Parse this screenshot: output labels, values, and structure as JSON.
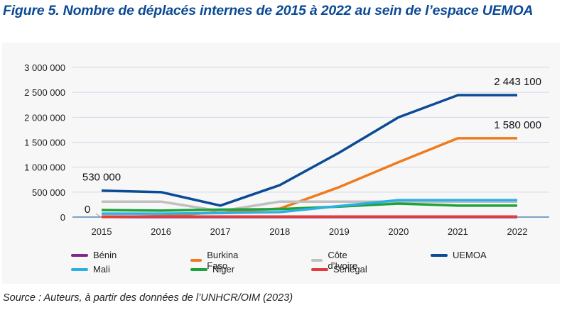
{
  "title": "Figure 5. Nombre de déplacés internes de 2015 à 2022 au sein de l’espace UEMOA",
  "source": "Source : Auteurs, à partir des données de l’UNHCR/OIM (2023)",
  "chart_data": {
    "type": "line",
    "title": "Figure 5. Nombre de déplacés internes de 2015 à 2022 au sein de l’espace UEMOA",
    "xlabel": "",
    "ylabel": "",
    "x": [
      "2015",
      "2016",
      "2017",
      "2018",
      "2019",
      "2020",
      "2021",
      "2022"
    ],
    "ylim": [
      0,
      3000000
    ],
    "yticks": [
      0,
      500000,
      1000000,
      1500000,
      2000000,
      2500000,
      3000000
    ],
    "ytick_labels": [
      "0",
      "500 000",
      "1 000 000",
      "1 500 000",
      "2 000 000",
      "2 500 000",
      "3 000 000"
    ],
    "grid": "horizontal",
    "legend_position": "bottom",
    "series": [
      {
        "name": "Bénin",
        "color": "#7b2a8c",
        "values": [
          0,
          0,
          0,
          0,
          0,
          0,
          0,
          0
        ]
      },
      {
        "name": "Burkina Faso",
        "color": "#f07b1c",
        "values": [
          0,
          20000,
          100000,
          170000,
          600000,
          1100000,
          1580000,
          1580000
        ]
      },
      {
        "name": "Côte d’Ivoire",
        "color": "#c0c0c0",
        "values": [
          310000,
          310000,
          120000,
          310000,
          310000,
          310000,
          310000,
          310000
        ]
      },
      {
        "name": "UEMOA",
        "color": "#0b4a94",
        "values": [
          530000,
          500000,
          230000,
          640000,
          1290000,
          2000000,
          2443100,
          2443100
        ]
      },
      {
        "name": "Mali",
        "color": "#2eaee4",
        "values": [
          70000,
          70000,
          80000,
          100000,
          220000,
          340000,
          340000,
          340000
        ]
      },
      {
        "name": "Niger",
        "color": "#1ea23b",
        "values": [
          140000,
          130000,
          150000,
          160000,
          210000,
          270000,
          230000,
          230000
        ]
      },
      {
        "name": "Sénégal",
        "color": "#e03c3c",
        "values": [
          10000,
          10000,
          10000,
          10000,
          10000,
          10000,
          10000,
          10000
        ]
      }
    ],
    "annotations": [
      {
        "series": "UEMOA",
        "x": "2015",
        "text": "530 000"
      },
      {
        "series": "Burkina Faso",
        "x": "2015",
        "text": "0"
      },
      {
        "series": "UEMOA",
        "x": "2022",
        "text": "2 443 100"
      },
      {
        "series": "Burkina Faso",
        "x": "2022",
        "text": "1 580 000"
      }
    ]
  }
}
